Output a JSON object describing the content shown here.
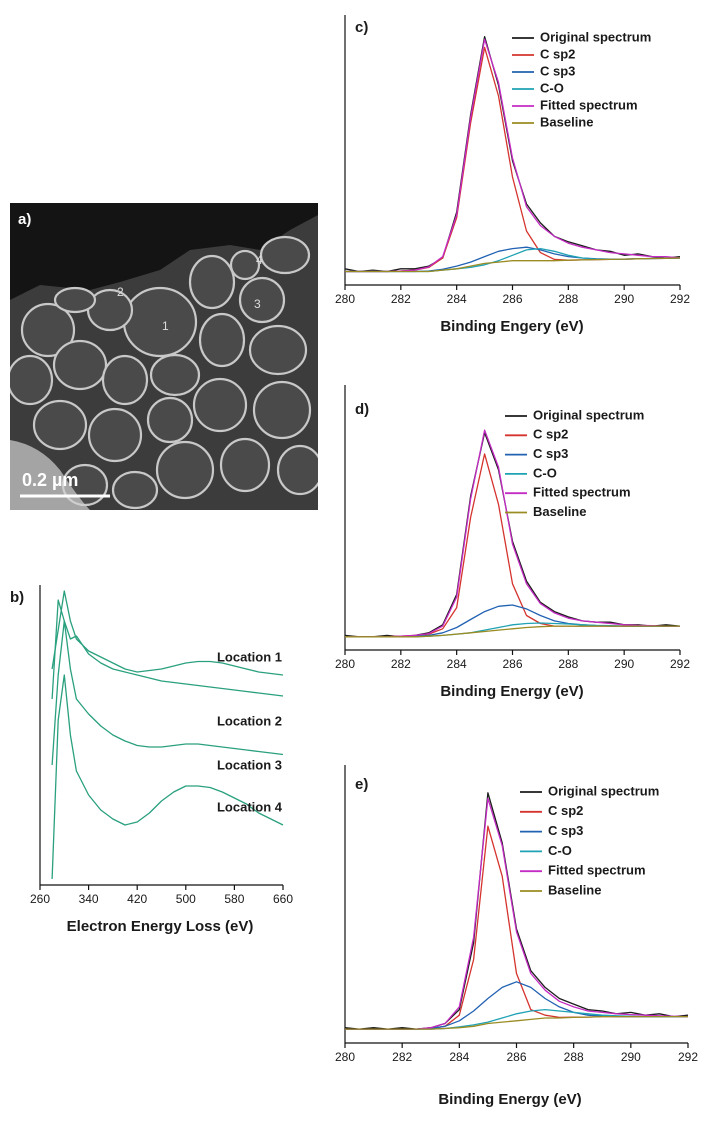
{
  "panel_a": {
    "label": "a)",
    "markers": [
      "1",
      "2",
      "3",
      "4"
    ],
    "scale_bar": "0.2 µm"
  },
  "chart_data": [
    {
      "type": "line",
      "panel_label": "b)",
      "x_label": "Electron Energy Loss (eV)",
      "xlim": [
        260,
        660
      ],
      "xticks": [
        260,
        340,
        420,
        500,
        580,
        660
      ],
      "ylim": [
        0,
        100
      ],
      "x": [
        280,
        290,
        300,
        310,
        320,
        340,
        360,
        380,
        400,
        420,
        440,
        460,
        480,
        500,
        520,
        540,
        560,
        580,
        600,
        620,
        640,
        660
      ],
      "series": [
        {
          "name": "Location 1",
          "color": "#2aa07e",
          "values": [
            72,
            85,
            98,
            88,
            82,
            78,
            76,
            74,
            72,
            71,
            71.5,
            72,
            73,
            74,
            74.5,
            74.5,
            74,
            73,
            72,
            71,
            70.5,
            70
          ]
        },
        {
          "name": "Location 2",
          "color": "#2aa07e",
          "values": [
            62,
            95,
            88,
            82,
            83,
            77,
            74,
            72,
            71,
            70,
            69,
            68,
            67.5,
            67,
            66.5,
            66,
            65.5,
            65,
            64.5,
            64,
            63.5,
            63
          ]
        },
        {
          "name": "Location 3",
          "color": "#2aa07e",
          "values": [
            40,
            70,
            88,
            72,
            62,
            57,
            53,
            50,
            48,
            46.5,
            46,
            46,
            46.5,
            47,
            47,
            46.5,
            46,
            45.5,
            45,
            44.5,
            44,
            43.5
          ]
        },
        {
          "name": "Location 4",
          "color": "#2aa07e",
          "values": [
            2,
            55,
            70,
            50,
            38,
            30,
            25,
            22,
            20,
            21,
            24,
            28,
            31,
            33,
            33,
            32.5,
            31,
            29,
            27,
            24,
            22,
            20
          ]
        }
      ]
    },
    {
      "type": "line",
      "panel_label": "c)",
      "x_label": "Binding Engery (eV)",
      "legend": "upper right",
      "xlim": [
        280,
        292
      ],
      "xticks": [
        280,
        282,
        284,
        286,
        288,
        290,
        292
      ],
      "ylim": [
        0,
        100
      ],
      "x": [
        280,
        280.5,
        281,
        281.5,
        282,
        282.5,
        283,
        283.5,
        284,
        284.5,
        285,
        285.5,
        286,
        286.5,
        287,
        287.5,
        288,
        288.5,
        289,
        289.5,
        290,
        290.5,
        291,
        291.5,
        292
      ],
      "series": [
        {
          "name": "Original spectrum",
          "color": "#1c1c1c",
          "values": [
            6,
            5,
            5.5,
            5,
            6,
            6,
            7,
            10,
            27,
            63,
            92,
            74,
            46,
            30,
            23,
            18,
            16,
            14.5,
            13,
            12.5,
            11,
            11.5,
            10.5,
            10,
            10.5
          ]
        },
        {
          "name": "C sp2",
          "color": "#d5342e",
          "values": [
            5,
            5,
            5,
            5,
            5.2,
            5.5,
            6.5,
            10,
            25,
            60,
            88,
            70,
            40,
            20,
            12,
            9.5,
            9.2,
            9.3,
            9.4,
            9.5,
            9.6,
            9.7,
            9.8,
            9.9,
            10
          ]
        },
        {
          "name": "C sp3",
          "color": "#2262b2",
          "values": [
            5,
            5,
            5,
            5,
            5,
            5,
            5.2,
            5.8,
            7,
            8.5,
            10.5,
            12.5,
            13.5,
            14,
            13,
            11.5,
            10.5,
            10,
            9.7,
            9.6,
            9.6,
            9.7,
            9.8,
            9.9,
            10
          ]
        },
        {
          "name": "C-O",
          "color": "#1fa2b4",
          "values": [
            5,
            5,
            5,
            5,
            5,
            5,
            5,
            5.5,
            6,
            6.5,
            7.5,
            9,
            11,
            13,
            13.5,
            12.5,
            11,
            10,
            9.6,
            9.5,
            9.6,
            9.7,
            9.8,
            9.9,
            10
          ]
        },
        {
          "name": "Fitted spectrum",
          "color": "#c42bc4",
          "values": [
            5,
            5,
            5,
            5,
            5.2,
            5.5,
            6.7,
            10.5,
            26,
            62,
            91,
            75,
            47,
            29,
            22,
            18,
            15.5,
            14,
            13,
            12,
            11.5,
            11,
            10.5,
            10.5,
            10
          ]
        },
        {
          "name": "Baseline",
          "color": "#9a8b22",
          "values": [
            5,
            5,
            5,
            5,
            5,
            5,
            5,
            5.5,
            6,
            7,
            8,
            8.5,
            9,
            9,
            9,
            9,
            9.2,
            9.3,
            9.4,
            9.5,
            9.6,
            9.7,
            9.8,
            9.9,
            10
          ]
        }
      ]
    },
    {
      "type": "line",
      "panel_label": "d)",
      "x_label": "Binding Energy (eV)",
      "legend": "upper right",
      "xlim": [
        280,
        292
      ],
      "xticks": [
        280,
        282,
        284,
        286,
        288,
        290,
        292
      ],
      "ylim": [
        0,
        100
      ],
      "x": [
        280,
        280.5,
        281,
        281.5,
        282,
        282.5,
        283,
        283.5,
        284,
        284.5,
        285,
        285.5,
        286,
        286.5,
        287,
        287.5,
        288,
        288.5,
        289,
        289.5,
        290,
        290.5,
        291,
        291.5,
        292
      ],
      "series": [
        {
          "name": "Original spectrum",
          "color": "#1c1c1c",
          "values": [
            5.5,
            5,
            5,
            5.5,
            5,
            5.5,
            6.5,
            9.5,
            21,
            58,
            82,
            68,
            41,
            26,
            18,
            14.5,
            12.5,
            11,
            10.5,
            10.5,
            9.5,
            9.5,
            9,
            9.5,
            9
          ]
        },
        {
          "name": "C sp2",
          "color": "#d5342e",
          "values": [
            5,
            5,
            5,
            5,
            5.2,
            5.5,
            6,
            8,
            16,
            50,
            74,
            55,
            25,
            13,
            10,
            9,
            9,
            9,
            9,
            9,
            9,
            9,
            9,
            9,
            9
          ]
        },
        {
          "name": "C sp3",
          "color": "#2262b2",
          "values": [
            5,
            5,
            5,
            5,
            5,
            5.2,
            5.5,
            6.5,
            8.5,
            11.5,
            14.5,
            16.5,
            17,
            15.5,
            13,
            11,
            10,
            9.5,
            9.2,
            9,
            9,
            9,
            9,
            9,
            9
          ]
        },
        {
          "name": "C-O",
          "color": "#1fa2b4",
          "values": [
            5,
            5,
            5,
            5,
            5,
            5,
            5.2,
            5.5,
            6,
            6.5,
            7.5,
            8.5,
            9.5,
            10,
            10.2,
            10,
            9.8,
            9.5,
            9.3,
            9.2,
            9.1,
            9,
            9,
            9,
            9
          ]
        },
        {
          "name": "Fitted spectrum",
          "color": "#c42bc4",
          "values": [
            5,
            5,
            5,
            5,
            5.2,
            5.5,
            6.2,
            9,
            20,
            57,
            83,
            69,
            40,
            25,
            17.5,
            14,
            12,
            11,
            10.5,
            10,
            9.5,
            9.3,
            9.2,
            9,
            9
          ]
        },
        {
          "name": "Baseline",
          "color": "#9a8b22",
          "values": [
            5,
            5,
            5,
            5,
            5,
            5,
            5.2,
            5.5,
            6,
            6.5,
            7,
            7.5,
            8,
            8.5,
            8.8,
            9,
            9,
            9,
            9,
            9,
            9,
            9,
            9,
            9,
            9
          ]
        }
      ]
    },
    {
      "type": "line",
      "panel_label": "e)",
      "x_label": "Binding Energy (eV)",
      "legend": "upper right",
      "xlim": [
        280,
        292
      ],
      "xticks": [
        280,
        282,
        284,
        286,
        288,
        290,
        292
      ],
      "ylim": [
        0,
        100
      ],
      "x": [
        280,
        280.5,
        281,
        281.5,
        282,
        282.5,
        283,
        283.5,
        284,
        284.5,
        285,
        285.5,
        286,
        286.5,
        287,
        287.5,
        288,
        288.5,
        289,
        289.5,
        290,
        290.5,
        291,
        291.5,
        292
      ],
      "series": [
        {
          "name": "Original spectrum",
          "color": "#1c1c1c",
          "values": [
            5.5,
            5,
            5.5,
            5,
            5.5,
            5,
            5.5,
            7,
            12,
            36,
            90,
            72,
            41,
            26,
            20,
            16,
            14,
            12,
            11.5,
            10.5,
            11,
            10,
            10.5,
            9.5,
            10
          ]
        },
        {
          "name": "C sp2",
          "color": "#d5342e",
          "values": [
            5,
            5,
            5,
            5,
            5,
            5,
            5.2,
            6,
            10,
            30,
            78,
            60,
            25,
            12,
            10,
            9.2,
            9.3,
            9.3,
            9.5,
            9.5,
            9.5,
            9.5,
            9.5,
            9.5,
            9.5
          ]
        },
        {
          "name": "C sp3",
          "color": "#2262b2",
          "values": [
            5,
            5,
            5,
            5,
            5,
            5,
            5.3,
            6,
            8,
            11.5,
            16,
            20,
            22,
            20,
            16,
            13,
            11,
            10,
            9.7,
            9.5,
            9.5,
            9.5,
            9.5,
            9.5,
            9.5
          ]
        },
        {
          "name": "C-O",
          "color": "#1fa2b4",
          "values": [
            5,
            5,
            5,
            5,
            5,
            5,
            5,
            5.2,
            5.8,
            6.5,
            7.5,
            9,
            10.5,
            11.5,
            12,
            11.5,
            11,
            10.5,
            10,
            9.8,
            9.6,
            9.5,
            9.5,
            9.5,
            9.5
          ]
        },
        {
          "name": "Fitted spectrum",
          "color": "#c42bc4",
          "values": [
            5,
            5,
            5,
            5,
            5,
            5,
            5.5,
            7,
            13,
            38,
            88,
            71,
            40,
            25,
            19,
            15,
            13,
            11.5,
            11,
            10.5,
            10.2,
            10,
            9.8,
            9.6,
            9.5
          ]
        },
        {
          "name": "Baseline",
          "color": "#9a8b22",
          "values": [
            5,
            5,
            5,
            5,
            5,
            5,
            5,
            5.2,
            5.5,
            6,
            7,
            7.5,
            8,
            8.5,
            9,
            9,
            9.2,
            9.3,
            9.5,
            9.5,
            9.5,
            9.5,
            9.5,
            9.5,
            9.5
          ]
        }
      ]
    }
  ]
}
